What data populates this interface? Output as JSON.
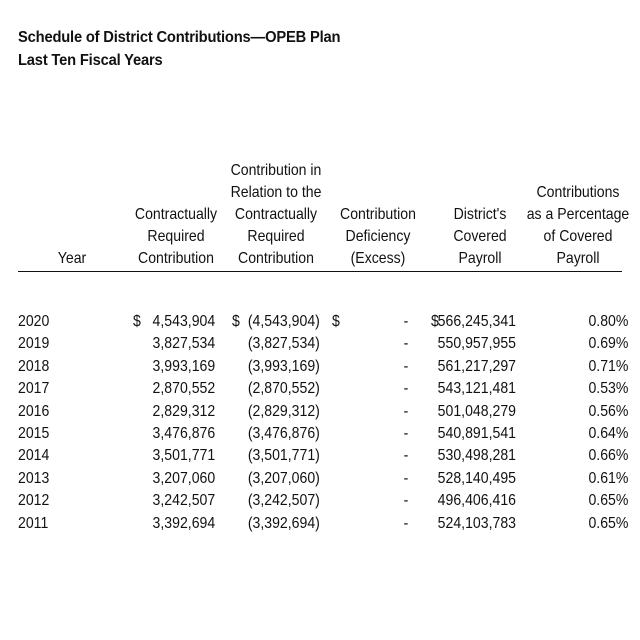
{
  "title": {
    "line1": "Schedule of District Contributions—OPEB Plan",
    "line2": "Last Ten Fiscal Years"
  },
  "columns": {
    "year": [
      "Year"
    ],
    "required": [
      "Contractually",
      "Required",
      "Contribution"
    ],
    "relation": [
      "Contribution in",
      "Relation to the",
      "Contractually",
      "Required",
      "Contribution"
    ],
    "deficiency": [
      "Contribution",
      "Deficiency",
      "(Excess)"
    ],
    "payroll": [
      "District's",
      "Covered",
      "Payroll"
    ],
    "percentage": [
      "Contributions",
      "as a Percentage",
      "of Covered",
      "Payroll"
    ]
  },
  "currency_symbol": "$",
  "rows": [
    {
      "year": "2020",
      "required": "4,543,904",
      "relation": "(4,543,904)",
      "deficiency": "-",
      "payroll": "566,245,341",
      "percentage": "0.80%"
    },
    {
      "year": "2019",
      "required": "3,827,534",
      "relation": "(3,827,534)",
      "deficiency": "-",
      "payroll": "550,957,955",
      "percentage": "0.69%"
    },
    {
      "year": "2018",
      "required": "3,993,169",
      "relation": "(3,993,169)",
      "deficiency": "-",
      "payroll": "561,217,297",
      "percentage": "0.71%"
    },
    {
      "year": "2017",
      "required": "2,870,552",
      "relation": "(2,870,552)",
      "deficiency": "-",
      "payroll": "543,121,481",
      "percentage": "0.53%"
    },
    {
      "year": "2016",
      "required": "2,829,312",
      "relation": "(2,829,312)",
      "deficiency": "-",
      "payroll": "501,048,279",
      "percentage": "0.56%"
    },
    {
      "year": "2015",
      "required": "3,476,876",
      "relation": "(3,476,876)",
      "deficiency": "-",
      "payroll": "540,891,541",
      "percentage": "0.64%"
    },
    {
      "year": "2014",
      "required": "3,501,771",
      "relation": "(3,501,771)",
      "deficiency": "-",
      "payroll": "530,498,281",
      "percentage": "0.66%"
    },
    {
      "year": "2013",
      "required": "3,207,060",
      "relation": "(3,207,060)",
      "deficiency": "-",
      "payroll": "528,140,495",
      "percentage": "0.61%"
    },
    {
      "year": "2012",
      "required": "3,242,507",
      "relation": "(3,242,507)",
      "deficiency": "-",
      "payroll": "496,406,416",
      "percentage": "0.65%"
    },
    {
      "year": "2011",
      "required": "3,392,694",
      "relation": "(3,392,694)",
      "deficiency": "-",
      "payroll": "524,103,783",
      "percentage": "0.65%"
    }
  ]
}
